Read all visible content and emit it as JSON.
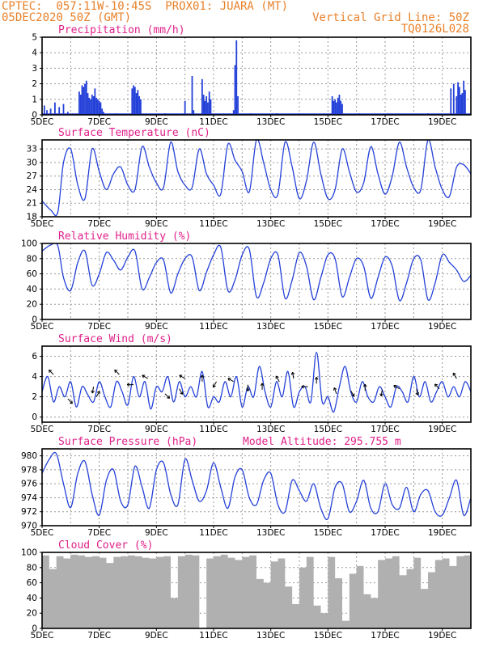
{
  "header": {
    "line1": "CPTEC:  057:11W-10:45S  PROX01: JUARA (MT)",
    "line2": "05DEC2020 50Z (GMT)",
    "right1": "Vertical Grid Line: 50Z",
    "right2": "TQ0126L028"
  },
  "colors": {
    "header": "#e8812a",
    "title": "#e0218a",
    "line": "#2441d8",
    "bar": "#2441d8",
    "cloud": "#b0b0b0"
  },
  "chart_data": [
    {
      "type": "bar",
      "title": "Precipitation (mm/h)",
      "x_tick_labels": [
        "5DEC",
        "7DEC",
        "9DEC",
        "11DEC",
        "13DEC",
        "15DEC",
        "17DEC",
        "19DEC"
      ],
      "x_range_days": [
        5,
        20
      ],
      "ylim": [
        0,
        5
      ],
      "yticks": [
        0,
        1,
        2,
        3,
        4,
        5
      ],
      "grid": true,
      "x": [
        5.08,
        5.17,
        5.3,
        5.45,
        5.6,
        5.75,
        5.9,
        6.3,
        6.35,
        6.4,
        6.45,
        6.5,
        6.55,
        6.6,
        6.65,
        6.7,
        6.75,
        6.8,
        6.85,
        6.9,
        6.95,
        7.0,
        7.05,
        7.1,
        7.15,
        7.6,
        8.15,
        8.2,
        8.25,
        8.3,
        8.35,
        8.4,
        8.45,
        9.3,
        10.0,
        10.25,
        10.3,
        10.6,
        10.65,
        10.7,
        10.75,
        10.8,
        10.85,
        10.9,
        11.7,
        11.75,
        11.8,
        11.85,
        12.3,
        13.2,
        14.0,
        15.15,
        15.2,
        15.25,
        15.3,
        15.35,
        15.4,
        15.45,
        15.5,
        16.1,
        17.1,
        18.5,
        19.3,
        19.4,
        19.5,
        19.55,
        19.6,
        19.65,
        19.7,
        19.75,
        19.8
      ],
      "y": [
        0.6,
        0.3,
        0.4,
        0.8,
        0.5,
        0.7,
        0.2,
        1.5,
        1.3,
        1.9,
        1.8,
        2.0,
        2.2,
        1.4,
        1.1,
        1.0,
        1.3,
        1.2,
        1.7,
        1.1,
        1.0,
        0.9,
        0.8,
        0.4,
        0.2,
        0.1,
        1.7,
        1.9,
        1.8,
        1.4,
        1.6,
        1.2,
        1.0,
        0.1,
        0.9,
        2.5,
        0.3,
        2.3,
        1.3,
        0.9,
        1.2,
        0.8,
        1.5,
        1.0,
        0.3,
        3.2,
        4.8,
        1.2,
        0.1,
        0.1,
        0.1,
        1.2,
        0.9,
        1.0,
        0.8,
        1.1,
        1.3,
        0.9,
        0.7,
        0.1,
        0.1,
        0.1,
        1.7,
        2.0,
        1.2,
        2.1,
        1.8,
        1.3,
        1.4,
        2.2,
        1.6
      ]
    },
    {
      "type": "line",
      "title": "Surface Temperature (nC)",
      "x_tick_labels": [
        "5DEC",
        "7DEC",
        "9DEC",
        "11DEC",
        "13DEC",
        "15DEC",
        "17DEC",
        "19DEC"
      ],
      "x_range_days": [
        5,
        20
      ],
      "ylim": [
        18,
        35
      ],
      "yticks": [
        18,
        21,
        24,
        27,
        30,
        33
      ],
      "grid": true,
      "x": [
        5.0,
        5.3,
        5.55,
        5.75,
        6.0,
        6.25,
        6.5,
        6.75,
        7.0,
        7.25,
        7.5,
        7.75,
        8.0,
        8.25,
        8.5,
        8.75,
        9.0,
        9.25,
        9.5,
        9.75,
        10.0,
        10.25,
        10.5,
        10.75,
        11.0,
        11.25,
        11.5,
        11.75,
        12.0,
        12.25,
        12.5,
        12.75,
        13.0,
        13.25,
        13.5,
        13.75,
        14.0,
        14.25,
        14.5,
        14.75,
        15.0,
        15.25,
        15.5,
        15.75,
        16.0,
        16.25,
        16.5,
        16.75,
        17.0,
        17.25,
        17.5,
        17.75,
        18.0,
        18.25,
        18.5,
        18.75,
        19.0,
        19.25,
        19.5,
        19.75,
        20.0
      ],
      "y": [
        21.5,
        19.5,
        19.0,
        30.0,
        33.0,
        25.0,
        22.0,
        33.0,
        28.0,
        24.0,
        27.5,
        29.0,
        25.0,
        24.0,
        33.5,
        29.0,
        25.5,
        24.5,
        34.5,
        28.0,
        25.0,
        24.5,
        33.0,
        27.5,
        25.0,
        23.0,
        34.0,
        30.5,
        28.0,
        23.5,
        35.0,
        30.0,
        24.0,
        23.0,
        34.5,
        29.0,
        22.0,
        26.0,
        34.5,
        27.5,
        22.0,
        24.0,
        33.0,
        28.0,
        23.5,
        25.5,
        33.5,
        27.5,
        23.0,
        27.0,
        34.5,
        29.0,
        24.5,
        24.0,
        35.0,
        29.0,
        24.0,
        22.5,
        29.0,
        29.5,
        27.5
      ]
    },
    {
      "type": "line",
      "title": "Relative Humidity (%)",
      "x_tick_labels": [
        "5DEC",
        "7DEC",
        "9DEC",
        "11DEC",
        "13DEC",
        "15DEC",
        "17DEC",
        "19DEC"
      ],
      "x_range_days": [
        5,
        20
      ],
      "ylim": [
        0,
        100
      ],
      "yticks": [
        0,
        20,
        40,
        60,
        80,
        100
      ],
      "grid": true,
      "x": [
        5.0,
        5.3,
        5.55,
        5.75,
        6.0,
        6.25,
        6.5,
        6.75,
        7.0,
        7.25,
        7.5,
        7.75,
        8.0,
        8.25,
        8.5,
        8.75,
        9.0,
        9.25,
        9.5,
        9.75,
        10.0,
        10.25,
        10.5,
        10.75,
        11.0,
        11.25,
        11.5,
        11.75,
        12.0,
        12.25,
        12.5,
        12.75,
        13.0,
        13.25,
        13.5,
        13.75,
        14.0,
        14.25,
        14.5,
        14.75,
        15.0,
        15.25,
        15.5,
        15.75,
        16.0,
        16.25,
        16.5,
        16.75,
        17.0,
        17.25,
        17.5,
        17.75,
        18.0,
        18.25,
        18.5,
        18.75,
        19.0,
        19.25,
        19.5,
        19.75,
        20.0
      ],
      "y": [
        90,
        98,
        97,
        55,
        38,
        75,
        90,
        45,
        60,
        88,
        78,
        65,
        82,
        90,
        40,
        55,
        75,
        78,
        35,
        60,
        80,
        82,
        38,
        62,
        85,
        95,
        38,
        52,
        85,
        92,
        30,
        48,
        80,
        85,
        28,
        52,
        88,
        70,
        26,
        55,
        85,
        80,
        30,
        55,
        80,
        70,
        28,
        55,
        82,
        70,
        25,
        48,
        80,
        78,
        26,
        48,
        85,
        75,
        65,
        50,
        58
      ]
    },
    {
      "type": "line",
      "title": "Surface Wind (m/s)",
      "x_tick_labels": [
        "5DEC",
        "7DEC",
        "9DEC",
        "11DEC",
        "13DEC",
        "15DEC",
        "17DEC",
        "19DEC"
      ],
      "x_range_days": [
        5,
        20
      ],
      "ylim": [
        -0.5,
        7
      ],
      "yticks": [
        0,
        2,
        4,
        6
      ],
      "grid": true,
      "x": [
        5.0,
        5.2,
        5.4,
        5.6,
        5.8,
        6.0,
        6.2,
        6.4,
        6.6,
        6.8,
        7.0,
        7.2,
        7.4,
        7.6,
        7.8,
        8.0,
        8.2,
        8.4,
        8.6,
        8.8,
        9.0,
        9.2,
        9.4,
        9.6,
        9.8,
        10.0,
        10.2,
        10.4,
        10.6,
        10.8,
        11.0,
        11.2,
        11.4,
        11.6,
        11.8,
        12.0,
        12.2,
        12.4,
        12.6,
        12.8,
        13.0,
        13.2,
        13.4,
        13.6,
        13.8,
        14.0,
        14.2,
        14.4,
        14.6,
        14.8,
        15.0,
        15.2,
        15.4,
        15.6,
        15.8,
        16.0,
        16.2,
        16.4,
        16.6,
        16.8,
        17.0,
        17.2,
        17.4,
        17.6,
        17.8,
        18.0,
        18.2,
        18.4,
        18.6,
        18.8,
        19.0,
        19.2,
        19.4,
        19.6,
        19.8,
        20.0
      ],
      "y": [
        2.5,
        4.0,
        1.5,
        3.0,
        2.0,
        3.5,
        1.0,
        3.0,
        2.2,
        1.5,
        3.5,
        2.0,
        1.0,
        3.5,
        2.5,
        1.2,
        4.0,
        2.0,
        3.5,
        0.8,
        3.0,
        2.5,
        4.0,
        1.5,
        3.5,
        2.0,
        3.0,
        2.0,
        4.5,
        1.0,
        2.0,
        1.5,
        3.5,
        2.0,
        4.0,
        1.0,
        3.0,
        2.0,
        5.0,
        2.5,
        1.0,
        3.5,
        2.0,
        4.5,
        1.0,
        2.5,
        3.0,
        1.5,
        6.4,
        1.5,
        2.0,
        0.5,
        3.0,
        5.0,
        2.5,
        1.5,
        3.5,
        2.0,
        1.5,
        3.0,
        2.0,
        1.0,
        3.0,
        2.5,
        1.5,
        4.0,
        2.0,
        3.5,
        1.5,
        2.5,
        3.5,
        2.0,
        3.0,
        2.0,
        3.5,
        2.5
      ],
      "arrows": [
        {
          "x": 5.4,
          "y": 4.2,
          "dir": -135
        },
        {
          "x": 5.9,
          "y": 1.8,
          "dir": 45
        },
        {
          "x": 6.8,
          "y": 3.0,
          "dir": 100
        },
        {
          "x": 6.9,
          "y": 2.0,
          "dir": -60
        },
        {
          "x": 7.7,
          "y": 4.2,
          "dir": -135
        },
        {
          "x": 8.2,
          "y": 3.2,
          "dir": 180
        },
        {
          "x": 8.7,
          "y": 3.8,
          "dir": -150
        },
        {
          "x": 9.3,
          "y": 2.3,
          "dir": 45
        },
        {
          "x": 9.8,
          "y": 2.8,
          "dir": 60
        },
        {
          "x": 10.0,
          "y": 3.8,
          "dir": -150
        },
        {
          "x": 10.6,
          "y": 3.5,
          "dir": -90
        },
        {
          "x": 11.1,
          "y": 3.5,
          "dir": 120
        },
        {
          "x": 11.7,
          "y": 3.5,
          "dir": -150
        },
        {
          "x": 12.2,
          "y": 3.2,
          "dir": 90
        },
        {
          "x": 12.7,
          "y": 2.7,
          "dir": -90
        },
        {
          "x": 13.3,
          "y": 3.5,
          "dir": -120
        },
        {
          "x": 13.8,
          "y": 3.8,
          "dir": -100
        },
        {
          "x": 14.3,
          "y": 3.0,
          "dir": 180
        },
        {
          "x": 14.6,
          "y": 3.3,
          "dir": -90
        },
        {
          "x": 15.3,
          "y": 2.3,
          "dir": -110
        },
        {
          "x": 15.8,
          "y": 2.6,
          "dir": 60
        },
        {
          "x": 16.3,
          "y": 2.6,
          "dir": -90
        },
        {
          "x": 16.9,
          "y": 2.7,
          "dir": 100
        },
        {
          "x": 17.5,
          "y": 2.8,
          "dir": -150
        },
        {
          "x": 18.1,
          "y": 2.8,
          "dir": 80
        },
        {
          "x": 18.9,
          "y": 2.8,
          "dir": -135
        },
        {
          "x": 19.5,
          "y": 3.8,
          "dir": -120
        }
      ]
    },
    {
      "type": "line",
      "title": "Surface Pressure (hPa)",
      "subtitle": "Model Altitude: 295.755 m",
      "x_tick_labels": [
        "5DEC",
        "7DEC",
        "9DEC",
        "11DEC",
        "13DEC",
        "15DEC",
        "17DEC",
        "19DEC"
      ],
      "x_range_days": [
        5,
        20
      ],
      "ylim": [
        970,
        981
      ],
      "yticks": [
        970,
        972,
        974,
        976,
        978,
        980
      ],
      "grid": true,
      "x": [
        5.0,
        5.25,
        5.5,
        5.75,
        6.0,
        6.25,
        6.5,
        6.75,
        7.0,
        7.25,
        7.5,
        7.75,
        8.0,
        8.25,
        8.5,
        8.75,
        9.0,
        9.25,
        9.5,
        9.75,
        10.0,
        10.25,
        10.5,
        10.75,
        11.0,
        11.25,
        11.5,
        11.75,
        12.0,
        12.25,
        12.5,
        12.75,
        13.0,
        13.25,
        13.5,
        13.75,
        14.0,
        14.25,
        14.5,
        14.75,
        15.0,
        15.25,
        15.5,
        15.75,
        16.0,
        16.25,
        16.5,
        16.75,
        17.0,
        17.25,
        17.5,
        17.75,
        18.0,
        18.25,
        18.5,
        18.75,
        19.0,
        19.25,
        19.5,
        19.75,
        20.0
      ],
      "y": [
        977.5,
        979.5,
        980.3,
        976.0,
        972.6,
        977.5,
        979.2,
        974.5,
        971.5,
        976.5,
        978.0,
        973.5,
        973.0,
        978.5,
        975.5,
        972.5,
        978.0,
        979.0,
        974.5,
        973.0,
        979.5,
        976.5,
        973.5,
        975.0,
        979.0,
        975.5,
        972.5,
        977.0,
        978.0,
        974.0,
        973.0,
        976.5,
        977.5,
        973.0,
        972.0,
        976.5,
        975.0,
        973.5,
        976.0,
        972.5,
        971.0,
        975.5,
        976.0,
        972.0,
        973.5,
        976.5,
        972.5,
        972.0,
        976.0,
        973.0,
        972.5,
        975.5,
        972.0,
        974.5,
        975.0,
        972.0,
        971.5,
        974.0,
        976.5,
        971.5,
        974.0
      ]
    },
    {
      "type": "bar",
      "title": "Cloud Cover (%)",
      "x_tick_labels": [
        "5DEC",
        "7DEC",
        "9DEC",
        "11DEC",
        "13DEC",
        "15DEC",
        "17DEC",
        "19DEC"
      ],
      "x_range_days": [
        5,
        20
      ],
      "ylim": [
        0,
        100
      ],
      "yticks": [
        0,
        20,
        40,
        60,
        80,
        100
      ],
      "grid": true,
      "x": [
        5.0,
        5.25,
        5.5,
        5.75,
        6.0,
        6.25,
        6.5,
        6.75,
        7.0,
        7.25,
        7.5,
        7.75,
        8.0,
        8.25,
        8.5,
        8.75,
        9.0,
        9.25,
        9.5,
        9.75,
        10.0,
        10.25,
        10.5,
        10.75,
        11.0,
        11.25,
        11.5,
        11.75,
        12.0,
        12.25,
        12.5,
        12.75,
        13.0,
        13.25,
        13.5,
        13.75,
        14.0,
        14.25,
        14.5,
        14.75,
        15.0,
        15.25,
        15.5,
        15.75,
        16.0,
        16.25,
        16.5,
        16.75,
        17.0,
        17.25,
        17.5,
        17.75,
        18.0,
        18.25,
        18.5,
        18.75,
        19.0,
        19.25,
        19.5,
        19.75,
        20.0
      ],
      "y": [
        96,
        78,
        95,
        92,
        97,
        96,
        94,
        95,
        93,
        86,
        94,
        95,
        96,
        95,
        93,
        92,
        94,
        95,
        40,
        95,
        97,
        96,
        0,
        92,
        95,
        97,
        93,
        90,
        94,
        96,
        65,
        60,
        88,
        92,
        55,
        32,
        80,
        94,
        30,
        20,
        94,
        66,
        10,
        72,
        82,
        45,
        40,
        90,
        92,
        95,
        70,
        78,
        93,
        52,
        74,
        90,
        92,
        82,
        95,
        96,
        97
      ]
    }
  ]
}
